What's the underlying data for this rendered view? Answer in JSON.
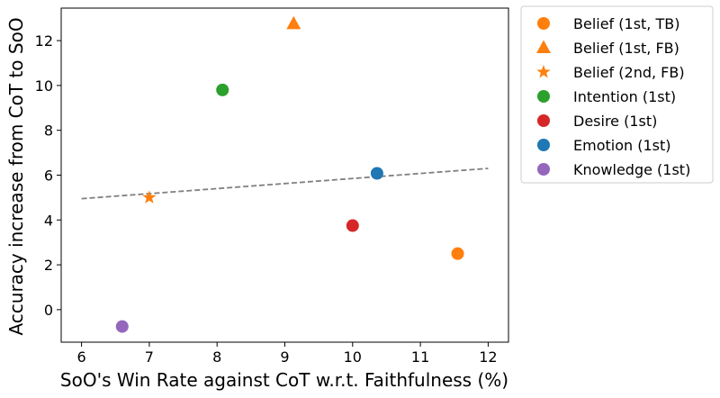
{
  "chart_data": {
    "type": "scatter",
    "title": "",
    "xlabel": "SoO's Win Rate against CoT w.r.t. Faithfulness (%)",
    "ylabel": "Accuracy increase from CoT to SoO",
    "xlim": [
      5.7,
      12.3
    ],
    "ylim": [
      -1.45,
      13.45
    ],
    "xticks": [
      "6",
      "7",
      "8",
      "9",
      "10",
      "11",
      "12"
    ],
    "yticks": [
      "0",
      "2",
      "4",
      "6",
      "8",
      "10",
      "12"
    ],
    "series": [
      {
        "name": "Belief (1st, TB)",
        "marker": "circle",
        "color": "#ff7f0e",
        "x": 11.55,
        "y": 2.5
      },
      {
        "name": "Belief (1st, FB)",
        "marker": "triangle",
        "color": "#ff7f0e",
        "x": 9.13,
        "y": 12.75
      },
      {
        "name": "Belief (2nd, FB)",
        "marker": "star",
        "color": "#ff7f0e",
        "x": 7.0,
        "y": 5.0
      },
      {
        "name": "Intention (1st)",
        "marker": "circle",
        "color": "#2ca02c",
        "x": 8.08,
        "y": 9.8
      },
      {
        "name": "Desire (1st)",
        "marker": "circle",
        "color": "#d62728",
        "x": 10.0,
        "y": 3.75
      },
      {
        "name": "Emotion (1st)",
        "marker": "circle",
        "color": "#1f77b4",
        "x": 10.36,
        "y": 6.08
      },
      {
        "name": "Knowledge (1st)",
        "marker": "circle",
        "color": "#9467bd",
        "x": 6.6,
        "y": -0.75
      }
    ],
    "trendline": {
      "style": "dashed",
      "color": "#808080",
      "x": [
        6.0,
        12.0
      ],
      "y": [
        4.95,
        6.3
      ]
    },
    "legend_position": "outside-right"
  }
}
